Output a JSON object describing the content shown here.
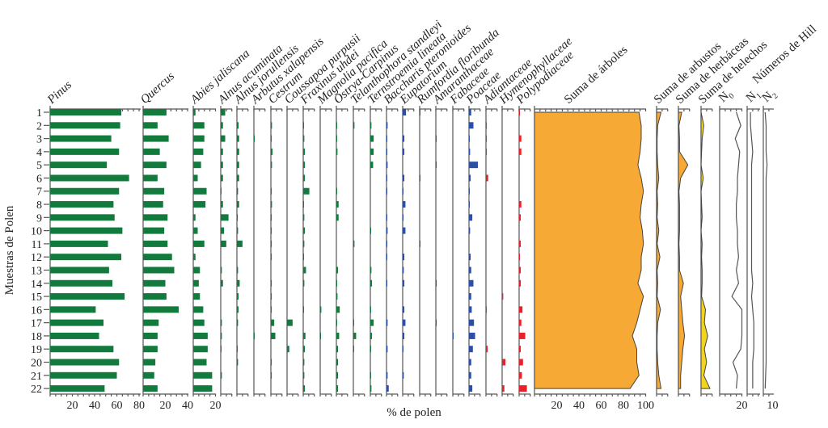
{
  "chart_data": {
    "type": "bar",
    "title": "",
    "xlabel": "% de polen",
    "ylabel": "Muestras de Polen",
    "hill_label": "Números de Hill",
    "categories": [
      "1",
      "2",
      "3",
      "4",
      "5",
      "6",
      "7",
      "8",
      "9",
      "10",
      "11",
      "12",
      "13",
      "14",
      "15",
      "16",
      "17",
      "18",
      "19",
      "20",
      "21",
      "22"
    ],
    "colors": {
      "trees": "#137a3e",
      "herbs": "#2c4ea3",
      "ferns": "#e62129",
      "sum_fill": "#f6a934",
      "ferns_sum_fill": "#f1d41e",
      "line": "#555555"
    },
    "series": [
      {
        "name": "Pinus",
        "group": "trees",
        "ticks": [
          "20",
          "40",
          "60",
          "80"
        ],
        "values": [
          64,
          63,
          55,
          62,
          51,
          71,
          62,
          57,
          58,
          65,
          52,
          64,
          53,
          56,
          67,
          41,
          48,
          44,
          57,
          62,
          60,
          49
        ]
      },
      {
        "name": "Quercus",
        "group": "trees",
        "ticks": [
          "20",
          "40"
        ],
        "values": [
          21,
          13,
          23,
          15,
          21,
          13,
          19,
          18,
          22,
          19,
          22,
          26,
          28,
          20,
          21,
          32,
          14,
          13,
          13,
          11,
          10,
          13
        ]
      },
      {
        "name": "Abies jaliscana",
        "group": "trees",
        "ticks": [
          "20"
        ],
        "values": [
          2,
          10,
          10,
          9,
          7,
          4,
          12,
          11,
          2,
          4,
          10,
          2,
          6,
          5,
          6,
          9,
          10,
          13,
          13,
          12,
          17,
          17
        ]
      },
      {
        "name": "Alnus acuminata",
        "group": "trees",
        "values": [
          4,
          2,
          4,
          2,
          2,
          2,
          0.5,
          2,
          7,
          3,
          5,
          0,
          1,
          2,
          0,
          0,
          1,
          1,
          0.5,
          0,
          1,
          0
        ]
      },
      {
        "name": "Alnus jorullensis",
        "group": "trees",
        "values": [
          0,
          1.5,
          2,
          2,
          2,
          2,
          1,
          2,
          0.5,
          1,
          5,
          0,
          1,
          2.5,
          1.5,
          1.5,
          1,
          0,
          0.5,
          1,
          0,
          0
        ]
      },
      {
        "name": "Arbutus xalapensis",
        "group": "trees",
        "values": [
          0,
          0,
          0.5,
          0,
          0,
          0,
          0,
          0,
          0,
          0,
          0,
          0,
          0,
          0,
          0,
          0,
          0,
          0.5,
          0,
          0,
          0,
          0
        ]
      },
      {
        "name": "Cestrum",
        "group": "trees",
        "values": [
          0,
          1,
          0.5,
          1.5,
          1,
          0,
          0.5,
          1,
          0.5,
          0.5,
          0.5,
          0.5,
          0,
          0.5,
          0.3,
          0.3,
          3,
          4,
          0,
          0.5,
          0.5,
          0
        ]
      },
      {
        "name": "Coussapoa purpusii",
        "group": "trees",
        "values": [
          0,
          0,
          0,
          0,
          0,
          0,
          0,
          0,
          0,
          0,
          0,
          0,
          0,
          0,
          0,
          0,
          5,
          0,
          2,
          0,
          0,
          0
        ]
      },
      {
        "name": "Fraxinus uhdei",
        "group": "trees",
        "values": [
          0,
          0.3,
          1,
          1.5,
          1.5,
          1.5,
          5.5,
          0.5,
          1,
          1.5,
          1,
          0.3,
          2.5,
          1,
          0,
          0.5,
          0,
          2,
          1.5,
          1,
          1,
          1.5
        ]
      },
      {
        "name": "Magnolia pacifica",
        "group": "trees",
        "values": [
          0,
          0,
          0,
          0,
          0,
          0,
          0,
          0,
          0,
          0,
          0,
          0,
          0,
          0,
          0,
          1,
          0,
          0.3,
          0,
          0,
          0,
          0
        ]
      },
      {
        "name": "Ostrya-Carpinus",
        "group": "trees",
        "values": [
          0,
          0.5,
          0.5,
          1,
          0,
          0,
          0.3,
          2,
          2,
          0,
          0,
          0,
          1.5,
          0.3,
          1,
          3,
          0.5,
          2.5,
          1.5,
          1.5,
          1.5,
          1.5
        ]
      },
      {
        "name": "Telanthophora standleyi",
        "group": "trees",
        "values": [
          0,
          1,
          0,
          0,
          0,
          0,
          0,
          0,
          0,
          0,
          1,
          0,
          0,
          0,
          0,
          0,
          0.5,
          2.5,
          0.3,
          0,
          0,
          0
        ]
      },
      {
        "name": "Ternstroemia lineata",
        "group": "trees",
        "values": [
          0,
          1,
          3,
          3,
          2.5,
          0,
          0,
          0,
          0,
          0.5,
          0,
          0,
          1,
          1.5,
          0,
          0.5,
          3,
          1.5,
          0.5,
          0,
          0.5,
          1
        ]
      },
      {
        "name": "Baccharis pteronioides",
        "group": "herbs",
        "values": [
          0,
          1,
          0.5,
          0.5,
          1,
          0.5,
          0.5,
          0,
          0.5,
          1,
          0.5,
          0.5,
          0,
          0.5,
          0,
          0,
          1,
          0,
          1,
          0,
          1,
          2
        ]
      },
      {
        "name": "Eupatorium",
        "group": "herbs",
        "values": [
          3,
          0,
          1.5,
          1.5,
          0,
          1.5,
          0.5,
          2.5,
          0.5,
          2.5,
          0,
          1.5,
          1,
          1.5,
          0,
          1.5,
          2.5,
          1.5,
          0.5,
          0,
          1,
          0
        ]
      },
      {
        "name": "Rumfordia floribunda",
        "group": "herbs",
        "values": [
          0.5,
          0,
          0,
          0,
          0,
          0.5,
          0,
          0,
          0,
          0,
          0.5,
          0,
          0,
          0,
          0,
          0,
          0,
          0,
          0,
          0,
          0,
          0
        ]
      },
      {
        "name": "Amaranthaceae",
        "group": "herbs",
        "values": [
          0,
          0,
          0.5,
          0,
          0.5,
          0,
          0,
          0,
          0,
          0,
          0,
          0,
          0,
          0.5,
          0,
          0,
          0.5,
          0,
          0,
          0,
          0,
          0
        ]
      },
      {
        "name": "Fabaceae",
        "group": "herbs",
        "values": [
          0,
          0,
          0,
          0,
          0,
          0,
          0,
          0,
          0,
          0,
          0,
          0,
          0,
          0,
          0,
          0,
          0,
          0.5,
          0,
          0,
          0,
          0
        ]
      },
      {
        "name": "Poaceae",
        "group": "herbs",
        "values": [
          2,
          4,
          0.5,
          1,
          8,
          1.5,
          0.5,
          0.5,
          3,
          1,
          0,
          1.5,
          2,
          4,
          2,
          2.5,
          4.5,
          5.5,
          3.5,
          2,
          2,
          3
        ]
      },
      {
        "name": "Adiantaceae",
        "group": "ferns",
        "values": [
          0,
          0.5,
          0.5,
          0.5,
          0,
          2,
          0,
          0,
          0,
          0,
          0,
          0,
          0,
          0,
          0,
          0.5,
          0,
          0,
          1.5,
          0,
          0,
          0
        ]
      },
      {
        "name": "Hymenophyllaceae",
        "group": "ferns",
        "values": [
          0,
          0,
          0,
          0,
          0,
          0,
          0,
          0,
          0,
          0,
          0,
          0,
          0,
          0,
          1,
          0,
          0,
          0,
          0,
          3,
          0,
          2
        ]
      },
      {
        "name": "Polypodiaceae",
        "group": "ferns",
        "values": [
          0.3,
          0,
          2,
          2,
          0,
          0,
          0,
          2,
          1.5,
          0,
          1.5,
          0.5,
          1.5,
          1.5,
          0,
          3,
          2,
          5.5,
          1.5,
          3.5,
          2.5,
          7
        ]
      }
    ],
    "sums": [
      {
        "name": "Suma de árboles",
        "ticks": [
          "20",
          "40",
          "60",
          "80",
          "100"
        ],
        "values": [
          94,
          96,
          96,
          95,
          93,
          96,
          98,
          96,
          95,
          97,
          98,
          96,
          96,
          93,
          98,
          95,
          92,
          88,
          92,
          92,
          94,
          86
        ]
      },
      {
        "name": "Suma de arbustos",
        "values": [
          4,
          1,
          0.5,
          0.5,
          1,
          2,
          0.5,
          1,
          0.5,
          2,
          0.5,
          3,
          0.5,
          1,
          0.5,
          3.5,
          1,
          0.5,
          0.5,
          1,
          2,
          4
        ]
      },
      {
        "name": "Suma de herbáceas",
        "values": [
          3,
          0.5,
          1,
          1,
          8.5,
          2,
          0.5,
          1,
          1,
          1,
          0.5,
          1,
          1,
          4.5,
          2,
          3,
          4,
          5.5,
          4,
          3,
          2,
          2
        ]
      },
      {
        "name": "Suma de helechos",
        "values": [
          0,
          2.5,
          1,
          0.5,
          0,
          2,
          0,
          0.5,
          1,
          0,
          1,
          0.5,
          1,
          1,
          0.5,
          4,
          3,
          6,
          3,
          5,
          2.5,
          8
        ]
      }
    ],
    "hill": [
      {
        "name": "N0",
        "ticks": [
          "20"
        ],
        "values": [
          15,
          19,
          14,
          18,
          17,
          16,
          16,
          15,
          15,
          16,
          16,
          17,
          15,
          17,
          11,
          20,
          20,
          20,
          19,
          12,
          16,
          15
        ]
      },
      {
        "name": "N1",
        "values": [
          3,
          3,
          4,
          5,
          4,
          4,
          4,
          4,
          4,
          4,
          4,
          4,
          4,
          5,
          4,
          5,
          6,
          6,
          6,
          5,
          5,
          5
        ]
      },
      {
        "name": "N2",
        "ticks": [
          "10"
        ],
        "values": [
          2,
          3,
          3,
          3,
          4,
          3,
          3,
          3,
          3,
          3,
          3,
          3,
          3,
          3,
          3,
          3,
          3,
          3,
          3,
          3,
          2.5,
          2
        ]
      }
    ]
  }
}
